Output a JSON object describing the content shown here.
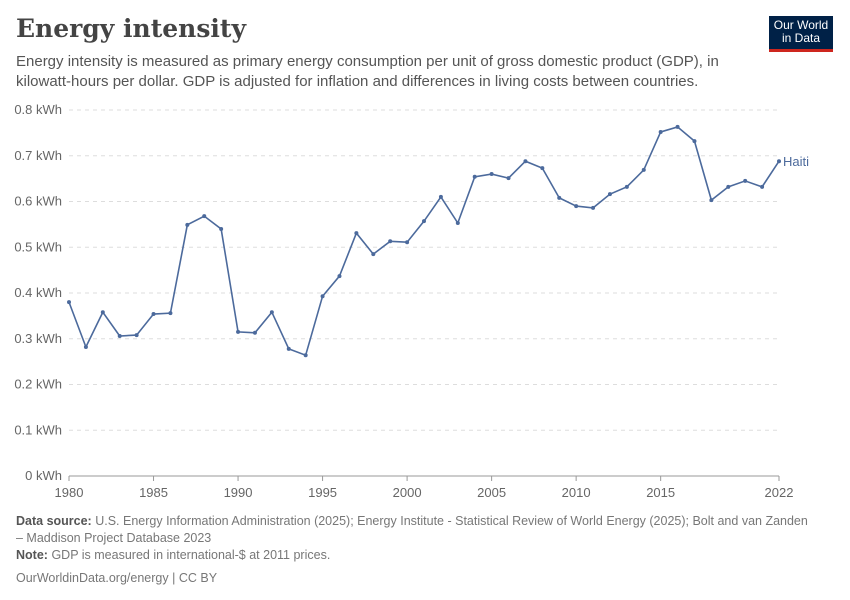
{
  "header": {
    "title": "Energy intensity",
    "subtitle": "Energy intensity is measured as primary energy consumption per unit of gross domestic product (GDP), in kilowatt-hours per dollar. GDP is adjusted for inflation and differences in living costs between countries.",
    "logo": "Our World in Data"
  },
  "chart_data": {
    "type": "line",
    "title": "Energy intensity",
    "ylim": [
      0,
      0.8
    ],
    "xlim": [
      1980,
      2022
    ],
    "y_ticks": [
      "0 kWh",
      "0.1 kWh",
      "0.2 kWh",
      "0.3 kWh",
      "0.4 kWh",
      "0.5 kWh",
      "0.6 kWh",
      "0.7 kWh",
      "0.8 kWh"
    ],
    "x_ticks": [
      "1980",
      "1985",
      "1990",
      "1995",
      "2000",
      "2005",
      "2010",
      "2015",
      "2022"
    ],
    "grid": "horizontal dashed",
    "legend": "line end label",
    "series": [
      {
        "name": "Haiti",
        "color": "#4c6a9c",
        "x": [
          1980,
          1981,
          1982,
          1983,
          1984,
          1985,
          1986,
          1987,
          1988,
          1989,
          1990,
          1991,
          1992,
          1993,
          1994,
          1995,
          1996,
          1997,
          1998,
          1999,
          2000,
          2001,
          2002,
          2003,
          2004,
          2005,
          2006,
          2007,
          2008,
          2009,
          2010,
          2011,
          2012,
          2013,
          2014,
          2015,
          2016,
          2017,
          2018,
          2019,
          2020,
          2021,
          2022
        ],
        "values": [
          0.38,
          0.282,
          0.358,
          0.306,
          0.308,
          0.354,
          0.356,
          0.549,
          0.568,
          0.54,
          0.315,
          0.313,
          0.358,
          0.278,
          0.264,
          0.393,
          0.437,
          0.531,
          0.485,
          0.513,
          0.511,
          0.557,
          0.61,
          0.553,
          0.654,
          0.66,
          0.651,
          0.688,
          0.673,
          0.608,
          0.59,
          0.586,
          0.616,
          0.632,
          0.669,
          0.752,
          0.763,
          0.732,
          0.603,
          0.632,
          0.645,
          0.632,
          0.688
        ]
      }
    ]
  },
  "footer": {
    "source_label": "Data source:",
    "source": "U.S. Energy Information Administration (2025); Energy Institute - Statistical Review of World Energy (2025); Bolt and van Zanden – Maddison Project Database 2023",
    "note_label": "Note:",
    "note": "GDP is measured in international-$ at 2011 prices.",
    "link": "OurWorldinData.org/energy",
    "license": "| CC BY"
  }
}
